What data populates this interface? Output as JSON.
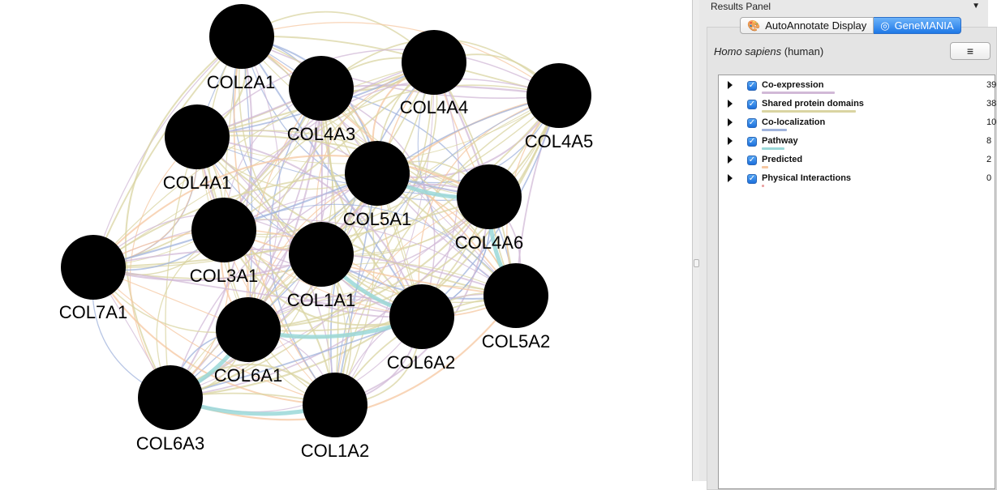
{
  "panel": {
    "title": "Results Panel",
    "menu_arrow": "▼",
    "tabs": [
      {
        "label": "AutoAnnotate Display",
        "icon": "🎨",
        "active": false
      },
      {
        "label": "GeneMANIA",
        "icon": "◎",
        "active": true
      }
    ],
    "organism_scientific": "Homo sapiens",
    "organism_common": "(human)",
    "menu_button_icon": "≡",
    "networks": [
      {
        "name": "Co-expression",
        "percent": "39",
        "color": "#d1b9d7",
        "checked": true
      },
      {
        "name": "Shared protein domains",
        "percent": "38",
        "color": "#dad4a2",
        "checked": true
      },
      {
        "name": "Co-localization",
        "percent": "10",
        "color": "#a0b3dc",
        "checked": true
      },
      {
        "name": "Pathway",
        "percent": "8",
        "color": "#9ad8d8",
        "checked": true
      },
      {
        "name": "Predicted",
        "percent": "2",
        "color": "#f6c7a0",
        "checked": true
      },
      {
        "name": "Physical Interactions",
        "percent": "0",
        "color": "#eaa2a2",
        "checked": true
      }
    ]
  },
  "network": {
    "nodes": [
      {
        "id": "COL2A1",
        "label": "COL2A1"
      },
      {
        "id": "COL4A3",
        "label": "COL4A3"
      },
      {
        "id": "COL4A4",
        "label": "COL4A4"
      },
      {
        "id": "COL4A5",
        "label": "COL4A5"
      },
      {
        "id": "COL4A1",
        "label": "COL4A1"
      },
      {
        "id": "COL5A1",
        "label": "COL5A1"
      },
      {
        "id": "COL4A6",
        "label": "COL4A6"
      },
      {
        "id": "COL3A1",
        "label": "COL3A1"
      },
      {
        "id": "COL1A1",
        "label": "COL1A1"
      },
      {
        "id": "COL7A1",
        "label": "COL7A1"
      },
      {
        "id": "COL5A2",
        "label": "COL5A2"
      },
      {
        "id": "COL6A2",
        "label": "COL6A2"
      },
      {
        "id": "COL6A1",
        "label": "COL6A1"
      },
      {
        "id": "COL6A3",
        "label": "COL6A3"
      },
      {
        "id": "COL1A2",
        "label": "COL1A2"
      }
    ],
    "node_color": "#000000"
  }
}
